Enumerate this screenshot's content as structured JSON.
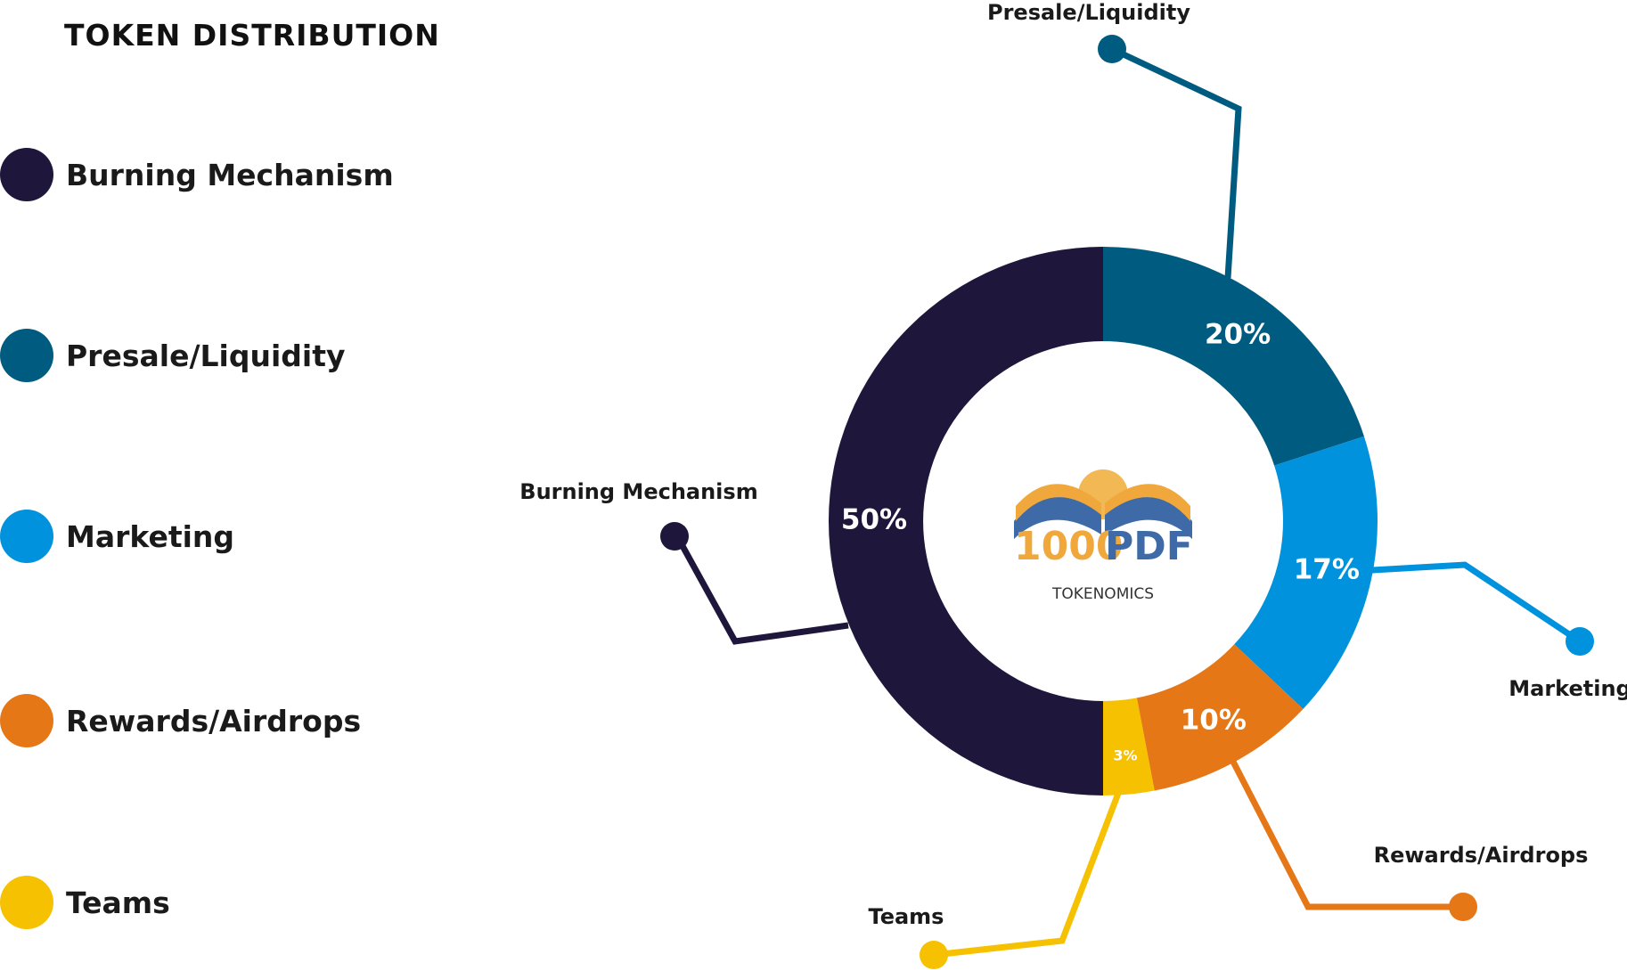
{
  "page": {
    "title": "TOKEN DISTRIBUTION",
    "center_caption": "TOKENOMICS",
    "logo": {
      "text_prefix": "1000",
      "text_suffix": "PDF"
    }
  },
  "legend": [
    {
      "label": "Burning Mechanism",
      "color": "#1e163b"
    },
    {
      "label": "Presale/Liquidity",
      "color": "#005b80"
    },
    {
      "label": "Marketing",
      "color": "#0092dd"
    },
    {
      "label": "Rewards/Airdrops",
      "color": "#e57717"
    },
    {
      "label": "Teams",
      "color": "#f5c100"
    }
  ],
  "chart_data": {
    "type": "pie",
    "donut": true,
    "title": "TOKEN DISTRIBUTION",
    "slices": [
      {
        "name": "Presale/Liquidity",
        "value": 20,
        "label": "20%",
        "color": "#005b80"
      },
      {
        "name": "Marketing",
        "value": 17,
        "label": "17%",
        "color": "#0092dd"
      },
      {
        "name": "Rewards/Airdrops",
        "value": 10,
        "label": "10%",
        "color": "#e57717"
      },
      {
        "name": "Teams",
        "value": 3,
        "label": "3%",
        "color": "#f5c100"
      },
      {
        "name": "Burning Mechanism",
        "value": 50,
        "label": "50%",
        "color": "#1e163b"
      }
    ],
    "legend_position": "left",
    "callout_labels": [
      "Presale/Liquidity",
      "Marketing",
      "Rewards/Airdrops",
      "Teams",
      "Burning Mechanism"
    ]
  }
}
